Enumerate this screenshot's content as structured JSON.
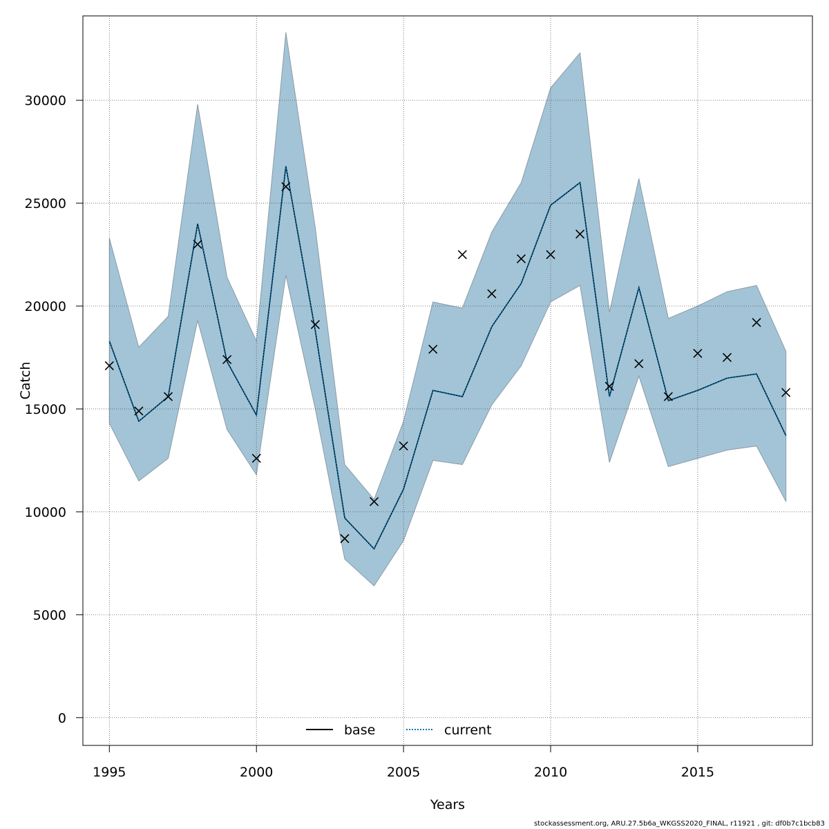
{
  "chart_data": {
    "type": "line",
    "xlabel": "Years",
    "ylabel": "Catch",
    "xlim": [
      1994.1,
      2018.9
    ],
    "ylim": [
      -1350,
      34100
    ],
    "x_ticks": [
      1995,
      2000,
      2005,
      2010,
      2015
    ],
    "y_ticks": [
      0,
      5000,
      10000,
      15000,
      20000,
      25000,
      30000
    ],
    "grid": true,
    "legend_position": "bottom-center",
    "x": [
      1995,
      1996,
      1997,
      1998,
      1999,
      2000,
      2001,
      2002,
      2003,
      2004,
      2005,
      2006,
      2007,
      2008,
      2009,
      2010,
      2011,
      2012,
      2013,
      2014,
      2015,
      2016,
      2017,
      2018
    ],
    "series": [
      {
        "name": "base",
        "style": "solid",
        "color": "#000000",
        "values": [
          18300,
          14400,
          15600,
          24000,
          17300,
          14700,
          26800,
          18800,
          9700,
          8200,
          11100,
          15900,
          15600,
          19000,
          21100,
          24900,
          26000,
          15600,
          20900,
          15400,
          15900,
          16500,
          16700,
          13700
        ]
      },
      {
        "name": "current",
        "style": "dotted",
        "color": "#0072b2",
        "values": [
          18300,
          14400,
          15600,
          24000,
          17300,
          14700,
          26800,
          18800,
          9700,
          8200,
          11100,
          15900,
          15600,
          19000,
          21100,
          24900,
          26000,
          15600,
          20900,
          15400,
          15900,
          16500,
          16700,
          13700
        ]
      }
    ],
    "confidence_band": {
      "color": "#a3c4d6",
      "upper": [
        23300,
        18000,
        19500,
        29800,
        21400,
        18300,
        33300,
        23800,
        12300,
        10600,
        14400,
        20200,
        19900,
        23600,
        26000,
        30600,
        32300,
        19700,
        26200,
        19400,
        20000,
        20700,
        21000,
        17800
      ],
      "lower": [
        14300,
        11500,
        12600,
        19300,
        14000,
        11800,
        21500,
        15000,
        7700,
        6400,
        8600,
        12500,
        12300,
        15200,
        17100,
        20200,
        21000,
        12400,
        16600,
        12200,
        12600,
        13000,
        13200,
        10500
      ]
    },
    "observations": {
      "marker": "x",
      "values": [
        17100,
        14900,
        15600,
        23000,
        17400,
        12600,
        25800,
        19100,
        8700,
        10500,
        13200,
        17900,
        22500,
        20600,
        22300,
        22500,
        23500,
        16100,
        17200,
        15600,
        17700,
        17500,
        19200,
        15800
      ]
    },
    "footer_text": "stockassessment.org, ARU.27.5b6a_WKGSS2020_FINAL, r11921 , git: df0b7c1bcb83"
  }
}
